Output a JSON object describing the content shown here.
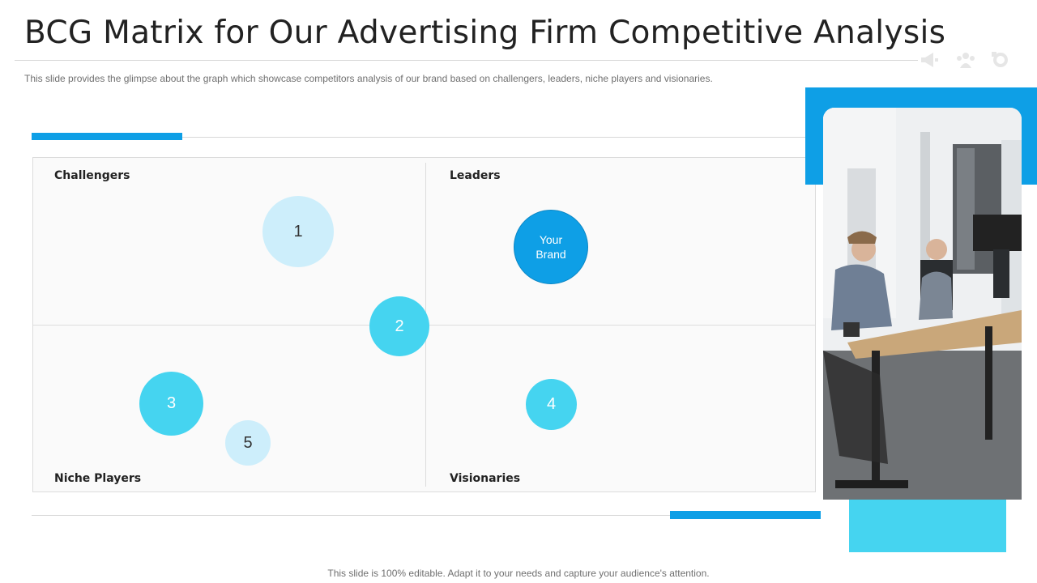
{
  "header": {
    "title": "BCG Matrix for Our Advertising Firm Competitive Analysis",
    "subtitle": "This slide provides  the glimpse about the graph which showcase competitors analysis of our brand  based on challengers, leaders, niche players and visionaries.",
    "icons": [
      "megaphone-icon",
      "team-icon",
      "gear-chart-icon"
    ]
  },
  "matrix": {
    "quadrants": {
      "top_left": "Challengers",
      "top_right": "Leaders",
      "bottom_left": "Niche Players",
      "bottom_right": "Visionaries"
    },
    "bubbles": [
      {
        "label": "1",
        "color": "#cdeefb"
      },
      {
        "label": "2",
        "color": "#45d4f0"
      },
      {
        "label": "Your",
        "label2": "Brand",
        "color": "#0e9fe6"
      },
      {
        "label": "3",
        "color": "#45d4f0"
      },
      {
        "label": "5",
        "color": "#cdeefb"
      },
      {
        "label": "4",
        "color": "#45d4f0"
      }
    ]
  },
  "colors": {
    "accent_blue": "#0e9fe6",
    "accent_cyan": "#45d4f0",
    "light_blue": "#cdeefb"
  },
  "footer": {
    "text": "This slide is 100% editable. Adapt it to your needs and capture your audience's attention."
  }
}
